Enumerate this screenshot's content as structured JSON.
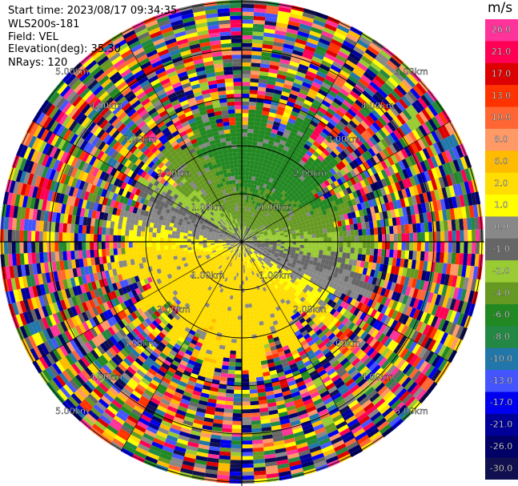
{
  "header": {
    "start_time": "Start time: 2023/08/17 09:34:35",
    "instrument": "WLS200s-181",
    "field": "Field: VEL",
    "elevation": "Elevation(deg): 35.30",
    "nrays": "NRays: 120"
  },
  "colorbar": {
    "unit": "m/s",
    "ticks": [
      "26.0",
      "21.0",
      "17.0",
      "13.0",
      "10.0",
      "8.0",
      "6.0",
      "2.0",
      "1.0",
      "0.0",
      "-1.0",
      "-2.0",
      "-4.0",
      "-6.0",
      "-8.0",
      "-10.0",
      "-13.0",
      "-17.0",
      "-21.0",
      "-26.0",
      "-30.0"
    ],
    "colors": [
      "#ff3399",
      "#ff0055",
      "#dd0000",
      "#ff3300",
      "#ff6633",
      "#ff9966",
      "#ffbb00",
      "#ffdd00",
      "#ffff00",
      "#888888",
      "#666666",
      "#99cc33",
      "#669922",
      "#228822",
      "#228844",
      "#2277aa",
      "#4455ff",
      "#0000ee",
      "#000099",
      "#000066",
      "#101050"
    ]
  },
  "chart_data": {
    "type": "heatmap",
    "projection": "polar PPI",
    "field": "VEL",
    "units": "m/s",
    "nrays": 120,
    "elevation_deg": 35.3,
    "vmin": -30.0,
    "vmax": 26.0,
    "range_ring_labels": [
      "1.00km",
      "2.00km",
      "3.00km",
      "4.00km",
      "5.00km"
    ],
    "valid_signal_range_km_approx": 2.5
  }
}
